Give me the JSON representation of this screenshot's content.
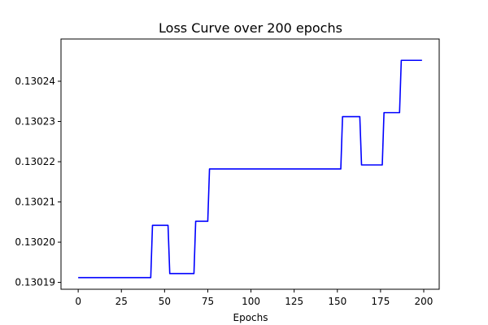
{
  "chart_data": {
    "type": "line",
    "title": "Loss Curve over 200 epochs",
    "xlabel": "Epochs",
    "ylabel": "",
    "xlim": [
      -9.95,
      208.95
    ],
    "ylim": [
      0.1301883,
      0.1302505
    ],
    "x_ticks": [
      0,
      25,
      50,
      75,
      100,
      125,
      150,
      175,
      200
    ],
    "x_tick_labels": [
      "0",
      "25",
      "50",
      "75",
      "100",
      "125",
      "150",
      "175",
      "200"
    ],
    "y_ticks": [
      0.13019,
      0.1302,
      0.13021,
      0.13022,
      0.13023,
      0.13024
    ],
    "y_tick_labels": [
      "0.13019",
      "0.13020",
      "0.13021",
      "0.13022",
      "0.13023",
      "0.13024"
    ],
    "grid": false,
    "series": [
      {
        "color": "#0000ff",
        "x": [
          0,
          42,
          43,
          52,
          53,
          67,
          68,
          75,
          76,
          152,
          153,
          163,
          164,
          176,
          177,
          186,
          187,
          199
        ],
        "y": [
          0.1301912,
          0.1301912,
          0.1302042,
          0.1302042,
          0.1301922,
          0.1301922,
          0.1302052,
          0.1302052,
          0.1302182,
          0.1302182,
          0.1302312,
          0.1302312,
          0.1302192,
          0.1302192,
          0.1302322,
          0.1302322,
          0.1302452,
          0.1302452
        ]
      }
    ]
  }
}
